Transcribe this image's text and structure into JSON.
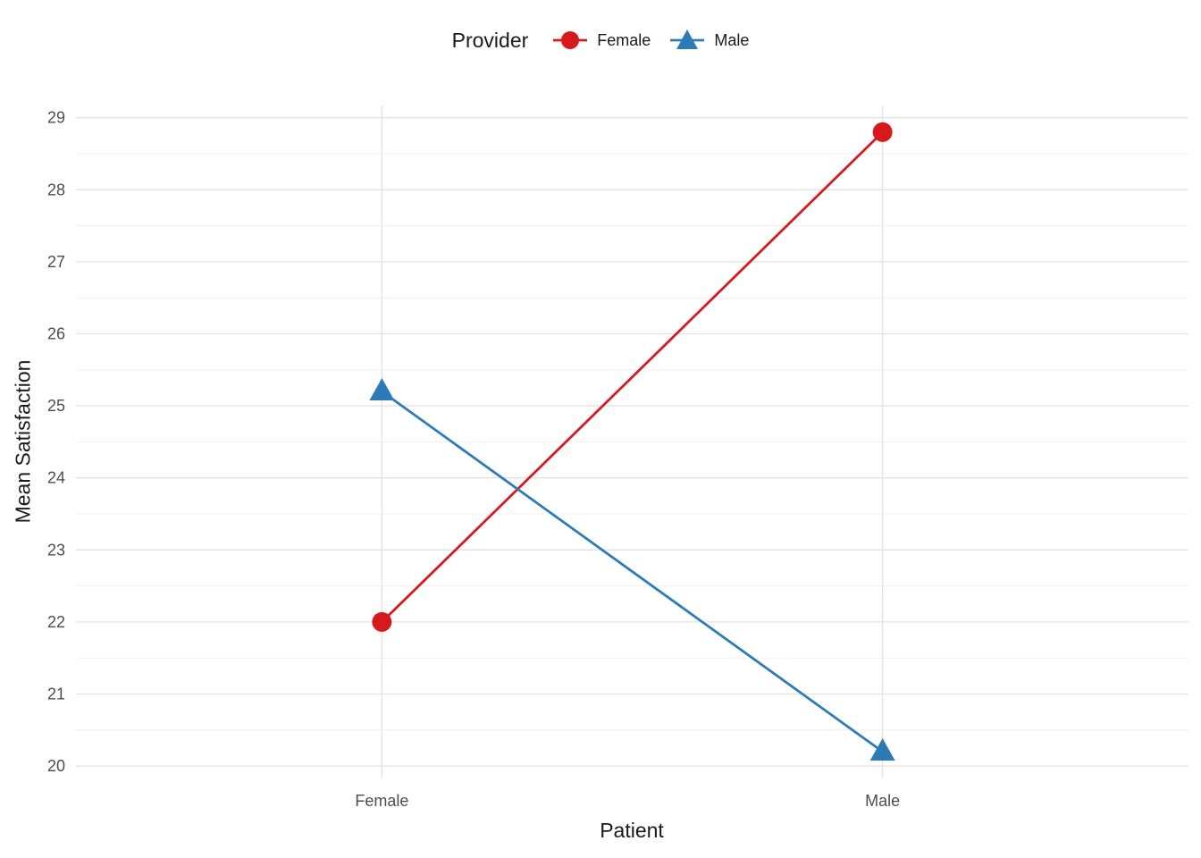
{
  "chart_data": {
    "type": "line",
    "title": "",
    "xlabel": "Patient",
    "ylabel": "Mean Satisfaction",
    "categories": [
      "Female",
      "Male"
    ],
    "series": [
      {
        "name": "Female",
        "marker": "circle",
        "color": "#D7191C",
        "values": [
          22.0,
          28.8
        ]
      },
      {
        "name": "Male",
        "marker": "triangle",
        "color": "#2C7BB6",
        "values": [
          25.2,
          20.2
        ]
      }
    ],
    "legend": {
      "title": "Provider",
      "position": "top"
    },
    "y_ticks": [
      20,
      21,
      22,
      23,
      24,
      25,
      26,
      27,
      28,
      29
    ],
    "ylim": [
      19.84,
      29.17
    ],
    "grid": {
      "major": true,
      "minor": true
    },
    "grid_major_color": "#e2e2e2",
    "grid_minor_color": "#f0f0f0",
    "tick_label_color": "#4d4d4d",
    "background_color": "#ffffff"
  }
}
